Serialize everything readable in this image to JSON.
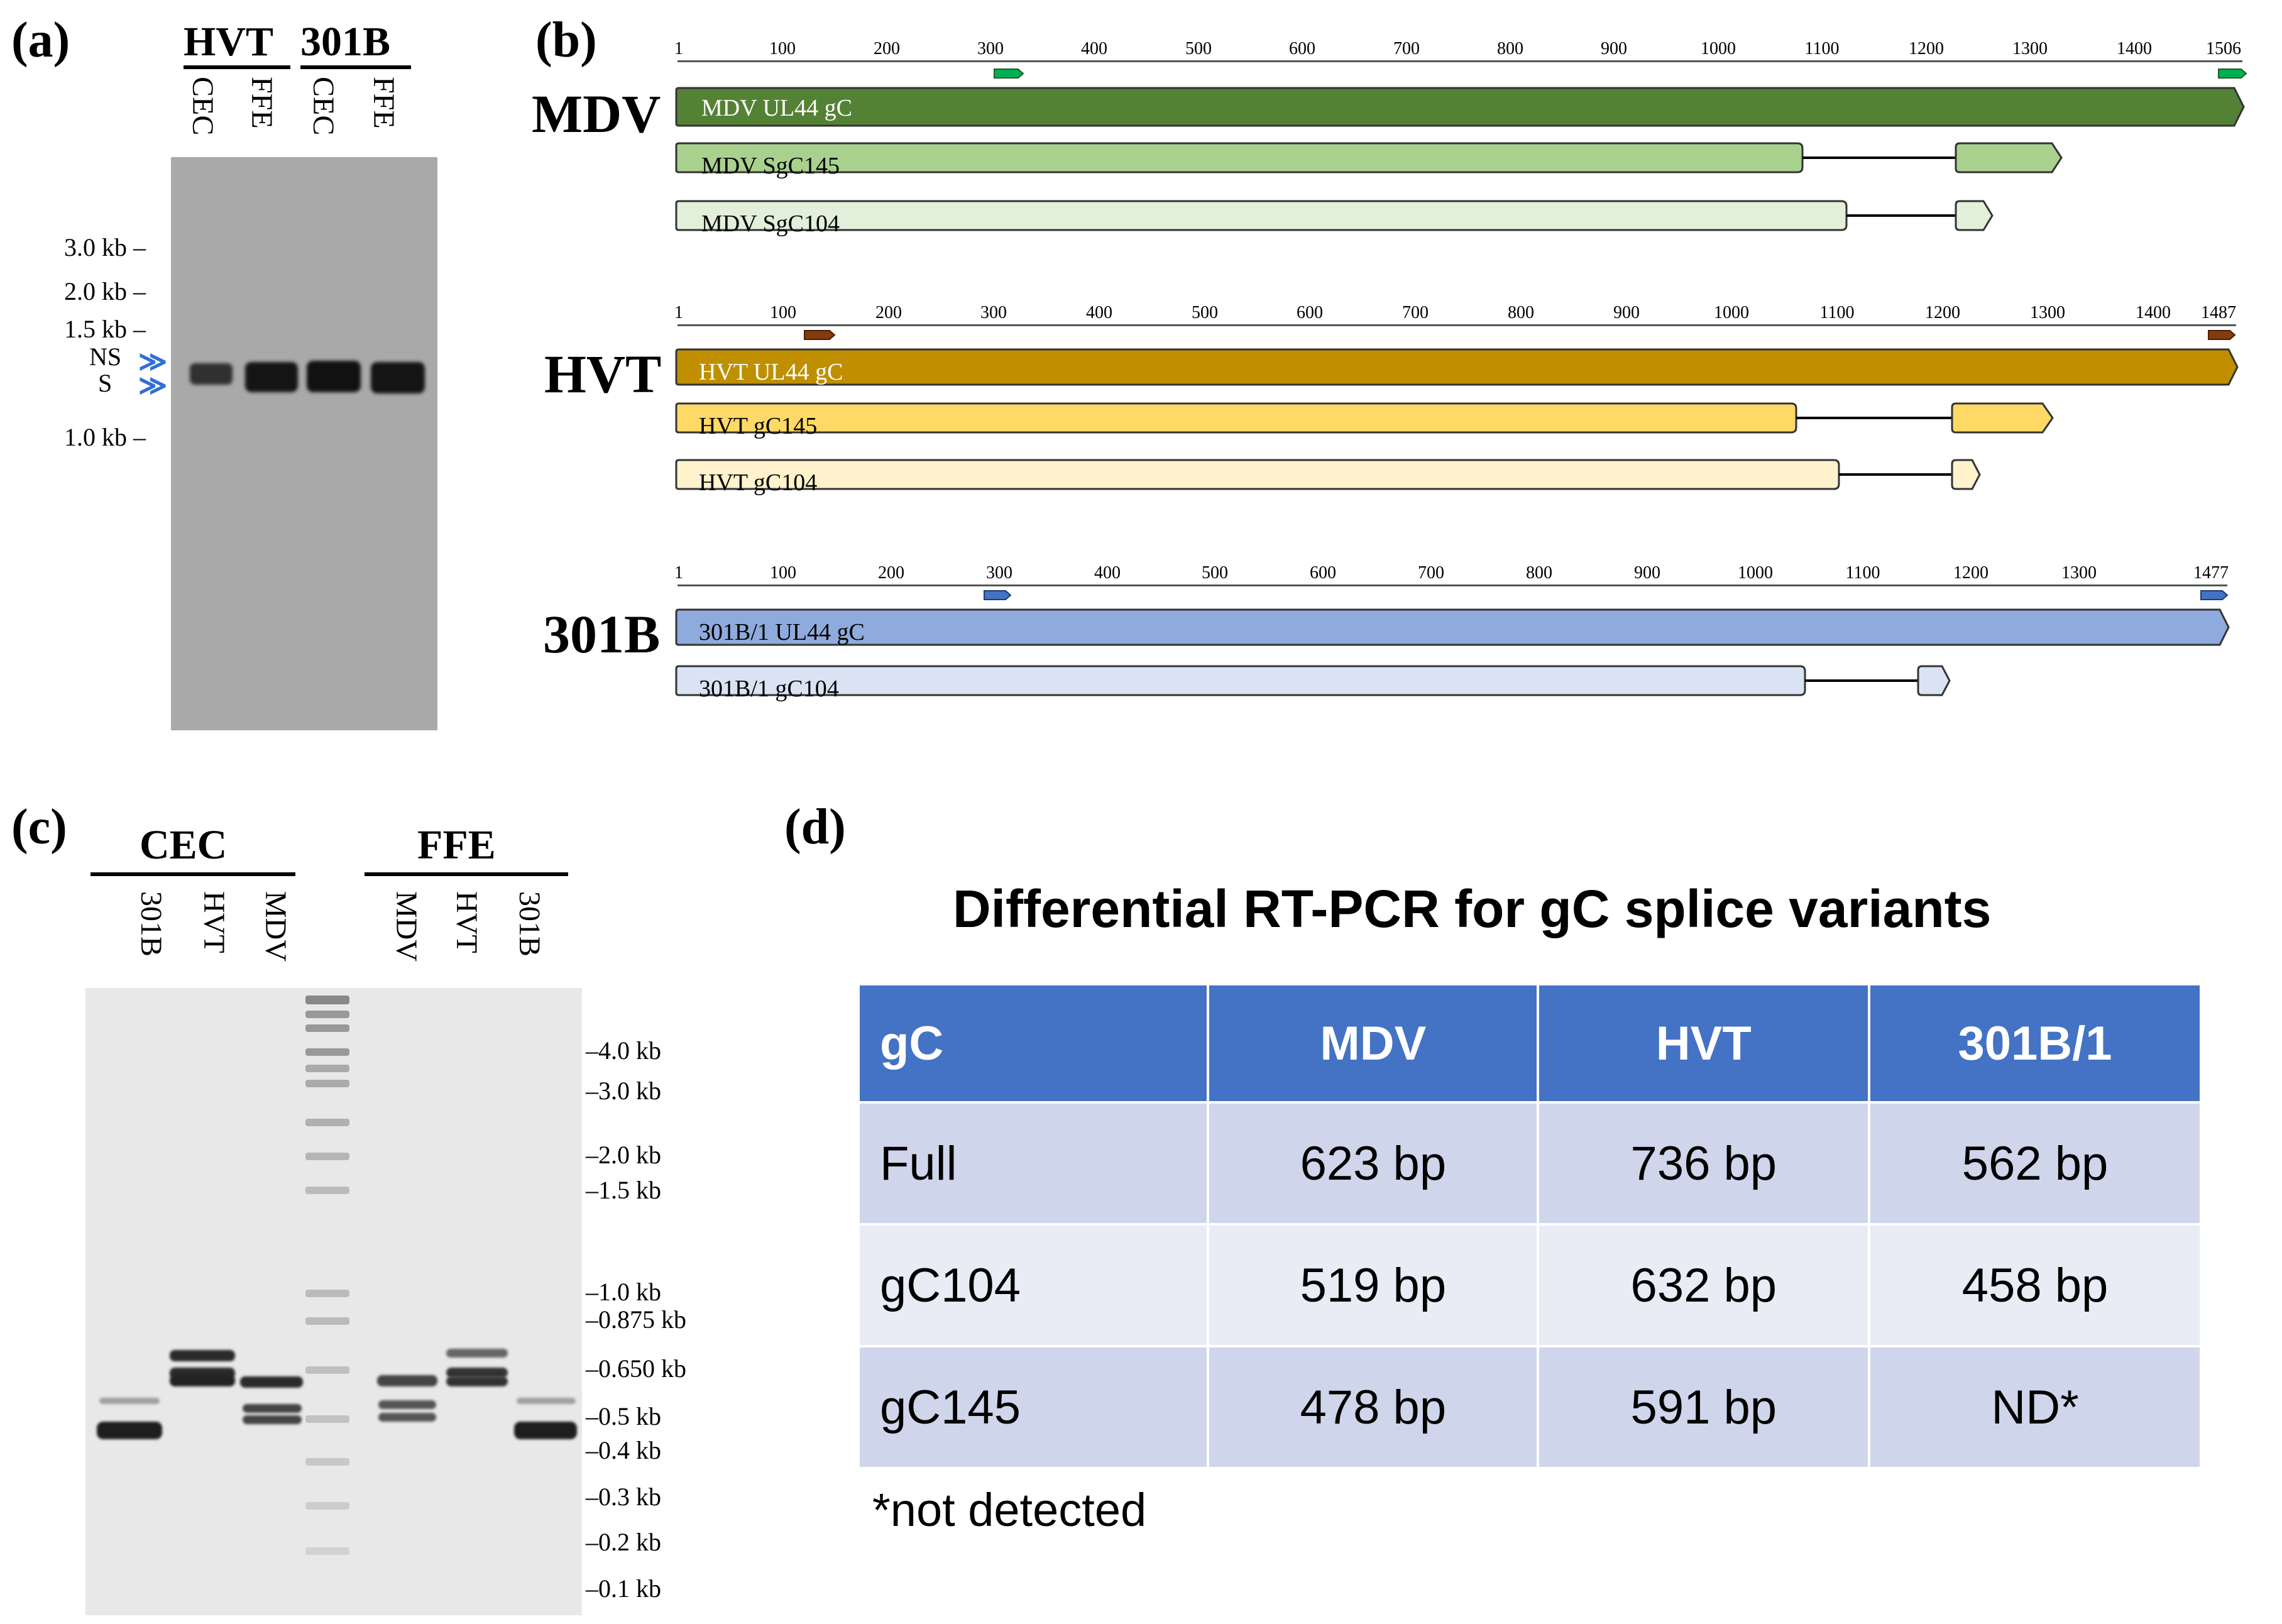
{
  "panels": {
    "a": {
      "label": "(a)",
      "group_headers": [
        "HVT",
        "301B"
      ],
      "lanes": [
        "CEC",
        "FFE",
        "CEC",
        "FFE"
      ],
      "markers": [
        "3.0 kb",
        "2.0 kb",
        "1.5 kb",
        "1.0 kb"
      ],
      "band_labels": [
        "NS",
        "S"
      ],
      "arrow_color": "#2f6fd8"
    },
    "b": {
      "label": "(b)",
      "organisms": [
        {
          "name": "MDV",
          "ruler": [
            "1",
            "100",
            "200",
            "300",
            "400",
            "500",
            "600",
            "700",
            "800",
            "900",
            "1000",
            "1100",
            "1200",
            "1300",
            "1400",
            "1506"
          ],
          "tracks": [
            {
              "label": "MDV UL44 gC",
              "color": "#548235",
              "text_color": "#ffffff"
            },
            {
              "label": "MDV SgC145",
              "color": "#a9d18e",
              "text_color": "#000000"
            },
            {
              "label": "MDV SgC104",
              "color": "#e2efda",
              "text_color": "#000000"
            }
          ],
          "primer_color": "#00b050"
        },
        {
          "name": "HVT",
          "ruler": [
            "1",
            "100",
            "200",
            "300",
            "400",
            "500",
            "600",
            "700",
            "800",
            "900",
            "1000",
            "1100",
            "1200",
            "1300",
            "1400",
            "1487"
          ],
          "tracks": [
            {
              "label": "HVT UL44 gC",
              "color": "#bf8f00",
              "text_color": "#ffffff"
            },
            {
              "label": "HVT gC145",
              "color": "#ffd966",
              "text_color": "#000000"
            },
            {
              "label": "HVT gC104",
              "color": "#fff2cc",
              "text_color": "#000000"
            }
          ],
          "primer_color": "#843c0c"
        },
        {
          "name": "301B",
          "ruler": [
            "1",
            "100",
            "200",
            "300",
            "400",
            "500",
            "600",
            "700",
            "800",
            "900",
            "1000",
            "1100",
            "1200",
            "1300",
            "1477"
          ],
          "tracks": [
            {
              "label": "301B/1 UL44 gC",
              "color": "#8faadc",
              "text_color": "#000000"
            },
            {
              "label": "301B/1 gC104",
              "color": "#dae3f3",
              "text_color": "#000000"
            }
          ],
          "primer_color": "#2f5597"
        }
      ]
    },
    "c": {
      "label": "(c)",
      "group_headers": [
        "CEC",
        "FFE"
      ],
      "lanes_cec": [
        "301B",
        "HVT",
        "MDV"
      ],
      "lanes_ffe": [
        "MDV",
        "HVT",
        "301B"
      ],
      "markers": [
        "4.0 kb",
        "3.0 kb",
        "2.0 kb",
        "1.5 kb",
        "1.0 kb",
        "0.875 kb",
        "0.650 kb",
        "0.5 kb",
        "0.4 kb",
        "0.3 kb",
        "0.2 kb",
        "0.1 kb"
      ]
    },
    "d": {
      "label": "(d)",
      "title": "Differential RT-PCR for gC splice variants",
      "header": [
        "gC",
        "MDV",
        "HVT",
        "301B/1"
      ],
      "rows": [
        [
          "Full",
          "623 bp",
          "736 bp",
          "562 bp"
        ],
        [
          "gC104",
          "519 bp",
          "632 bp",
          "458 bp"
        ],
        [
          "gC145",
          "478 bp",
          "591 bp",
          "ND*"
        ]
      ],
      "footnote": "*not detected",
      "header_color": "#4472c4",
      "row_colors": [
        "#cfd5ea",
        "#e9ebf5",
        "#cfd5ea"
      ]
    }
  }
}
